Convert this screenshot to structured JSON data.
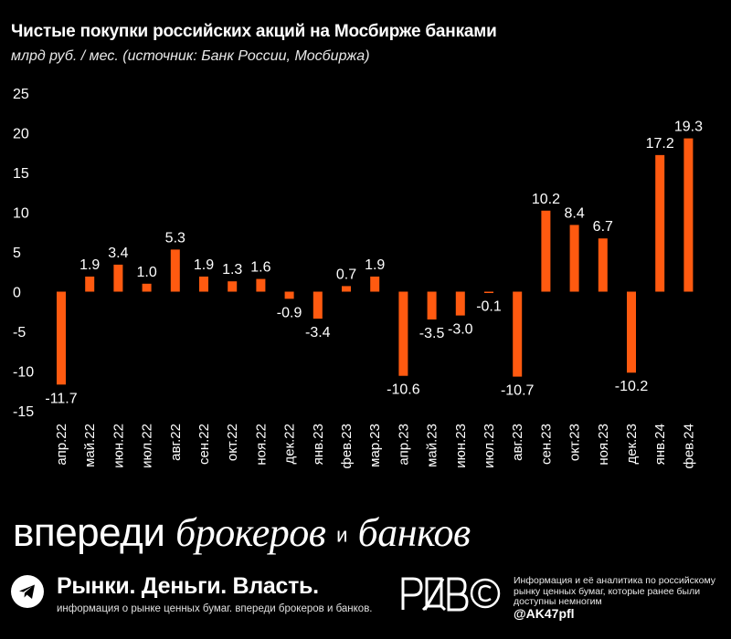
{
  "header": {
    "title": "Чистые покупки российских акций на Мосбирже банками",
    "subtitle": "млрд руб. / мес. (источник: Банк России, Мосбиржа)"
  },
  "chart_data": {
    "type": "bar",
    "title": "Чистые покупки российских акций на Мосбирже банками",
    "ylabel": "млрд руб. / мес.",
    "xlabel": "",
    "ylim": [
      -15,
      25
    ],
    "yticks": [
      25,
      20,
      15,
      10,
      5,
      0,
      -5,
      -10,
      -15
    ],
    "bar_color": "#ff5a10",
    "categories": [
      "апр.22",
      "май.22",
      "июн.22",
      "июл.22",
      "авг.22",
      "сен.22",
      "окт.22",
      "ноя.22",
      "дек.22",
      "янв.23",
      "фев.23",
      "мар.23",
      "апр.23",
      "май.23",
      "июн.23",
      "июл.23",
      "авг.23",
      "сен.23",
      "окт.23",
      "ноя.23",
      "дек.23",
      "янв.24",
      "фев.24"
    ],
    "values": [
      -11.7,
      1.9,
      3.4,
      1.0,
      5.3,
      1.9,
      1.3,
      1.6,
      -0.9,
      -3.4,
      0.7,
      1.9,
      -10.6,
      -3.5,
      -3.0,
      -0.1,
      -10.7,
      10.2,
      8.4,
      6.7,
      -10.2,
      17.2,
      19.3
    ],
    "data_labels": [
      "-11.7",
      "1.9",
      "3.4",
      "1.0",
      "5.3",
      "1.9",
      "1.3",
      "1.6",
      "-0.9",
      "-3.4",
      "0.7",
      "1.9",
      "-10.6",
      "-3.5",
      "-3.0",
      "-0.1",
      "-10.7",
      "10.2",
      "8.4",
      "6.7",
      "-10.2",
      "17.2",
      "19.3"
    ]
  },
  "footer": {
    "slogan": {
      "part1": "впереди",
      "part2": "брокеров",
      "part3": "и",
      "part4": "банков"
    },
    "brand_name": "Рынки. Деньги. Власть.",
    "brand_sub": "информация о рынке ценных бумаг. впереди брокеров и банков.",
    "logo_text": "РДВ",
    "disclaimer": "Информация и её аналитика по российскому рынку ценных бумаг, которые ранее были доступны немногим",
    "handle": "@AK47pfl"
  }
}
